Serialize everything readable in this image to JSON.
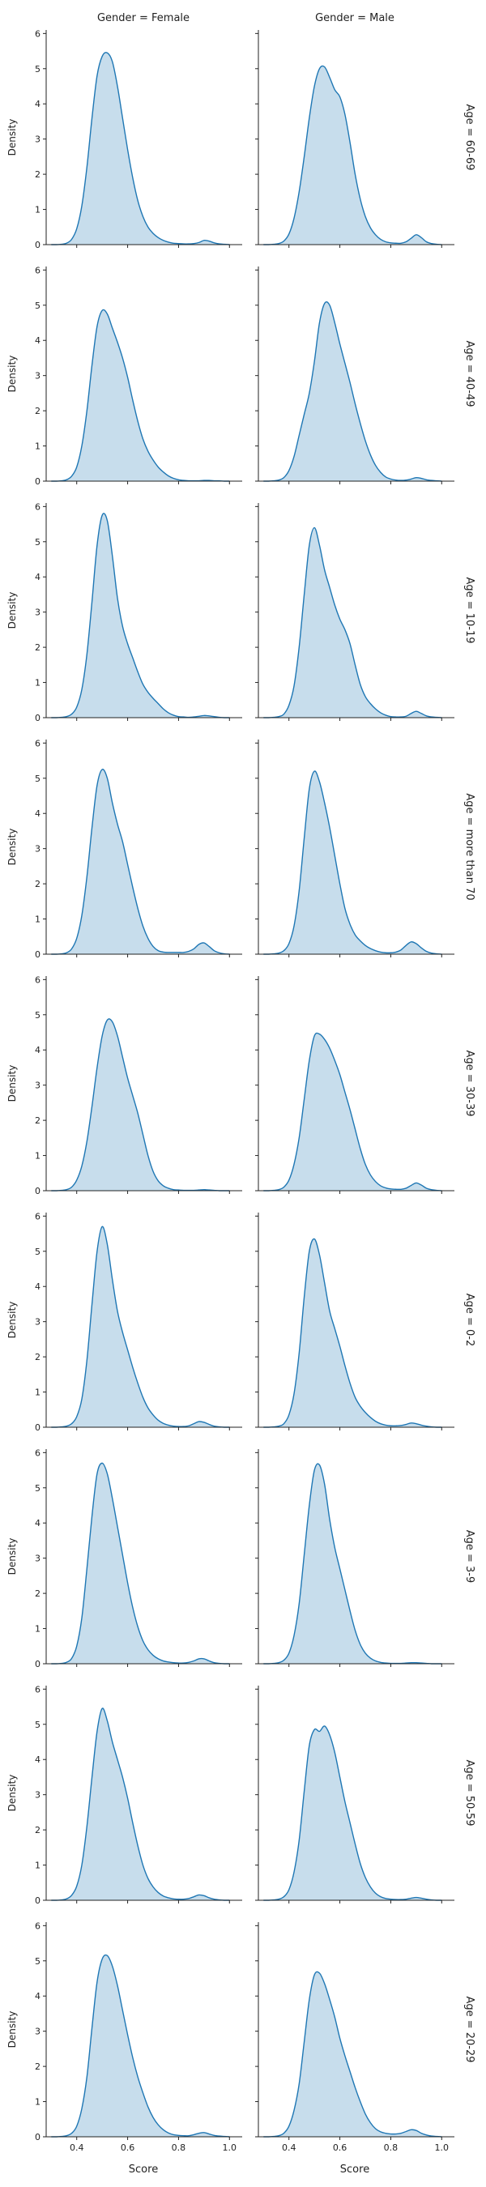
{
  "figure": {
    "col_titles": [
      "Gender = Female",
      "Gender = Male"
    ],
    "row_titles": [
      "Age = 60-69",
      "Age = 40-49",
      "Age = 10-19",
      "Age = more than 70",
      "Age = 30-39",
      "Age = 0-2",
      "Age = 3-9",
      "Age = 50-59",
      "Age = 20-29"
    ],
    "xlabel": "Score",
    "ylabel": "Density"
  },
  "colors": {
    "line": "#1f77b4",
    "fill": "#1f77b4",
    "fill_opacity": 0.25,
    "axis": "#222222"
  },
  "chart_data": {
    "type": "area",
    "kind": "kde facet grid",
    "xlim": [
      0.28,
      1.05
    ],
    "ylim": [
      0,
      6.1
    ],
    "xticks": [
      0.4,
      0.6,
      0.8,
      1.0
    ],
    "xtick_labels": [
      "0.4",
      "0.6",
      "0.8",
      "1.0"
    ],
    "yticks": [
      0,
      1,
      2,
      3,
      4,
      5,
      6
    ],
    "ytick_labels": [
      "0",
      "1",
      "2",
      "3",
      "4",
      "5",
      "6"
    ],
    "x": [
      0.3,
      0.32,
      0.34,
      0.36,
      0.38,
      0.4,
      0.42,
      0.44,
      0.46,
      0.48,
      0.5,
      0.52,
      0.54,
      0.56,
      0.58,
      0.6,
      0.62,
      0.64,
      0.66,
      0.68,
      0.7,
      0.72,
      0.74,
      0.76,
      0.78,
      0.8,
      0.82,
      0.84,
      0.86,
      0.88,
      0.9,
      0.92,
      0.94,
      0.96,
      0.98,
      1.0
    ],
    "panels": [
      {
        "row": "Age = 60-69",
        "col": "Gender = Female",
        "y": [
          0,
          0,
          0.01,
          0.04,
          0.15,
          0.45,
          1.1,
          2.2,
          3.6,
          4.8,
          5.35,
          5.45,
          5.2,
          4.5,
          3.6,
          2.7,
          1.9,
          1.25,
          0.8,
          0.5,
          0.32,
          0.2,
          0.12,
          0.07,
          0.04,
          0.03,
          0.02,
          0.02,
          0.03,
          0.06,
          0.12,
          0.1,
          0.05,
          0.02,
          0.01,
          0
        ]
      },
      {
        "row": "Age = 60-69",
        "col": "Gender = Male",
        "y": [
          0,
          0,
          0.01,
          0.03,
          0.1,
          0.3,
          0.75,
          1.5,
          2.5,
          3.6,
          4.5,
          5.0,
          5.05,
          4.75,
          4.4,
          4.2,
          3.7,
          2.9,
          2.0,
          1.3,
          0.8,
          0.48,
          0.28,
          0.15,
          0.08,
          0.05,
          0.04,
          0.04,
          0.08,
          0.18,
          0.28,
          0.2,
          0.08,
          0.03,
          0.01,
          0
        ]
      },
      {
        "row": "Age = 40-49",
        "col": "Gender = Female",
        "y": [
          0,
          0,
          0.01,
          0.04,
          0.14,
          0.4,
          1.0,
          2.0,
          3.3,
          4.4,
          4.85,
          4.75,
          4.35,
          3.95,
          3.5,
          2.95,
          2.3,
          1.7,
          1.2,
          0.85,
          0.6,
          0.4,
          0.26,
          0.15,
          0.08,
          0.04,
          0.02,
          0.01,
          0.01,
          0.01,
          0.02,
          0.02,
          0.01,
          0.01,
          0,
          0
        ]
      },
      {
        "row": "Age = 40-49",
        "col": "Gender = Male",
        "y": [
          0,
          0,
          0.01,
          0.03,
          0.1,
          0.3,
          0.7,
          1.3,
          1.9,
          2.5,
          3.4,
          4.5,
          5.05,
          5.0,
          4.5,
          3.9,
          3.35,
          2.8,
          2.2,
          1.65,
          1.15,
          0.75,
          0.45,
          0.25,
          0.12,
          0.06,
          0.03,
          0.02,
          0.03,
          0.06,
          0.1,
          0.08,
          0.04,
          0.02,
          0.01,
          0
        ]
      },
      {
        "row": "Age = 10-19",
        "col": "Gender = Female",
        "y": [
          0,
          0,
          0.01,
          0.03,
          0.1,
          0.3,
          0.8,
          1.8,
          3.3,
          4.9,
          5.75,
          5.6,
          4.6,
          3.4,
          2.6,
          2.1,
          1.7,
          1.3,
          0.95,
          0.72,
          0.55,
          0.4,
          0.25,
          0.14,
          0.07,
          0.03,
          0.02,
          0.01,
          0.02,
          0.04,
          0.06,
          0.05,
          0.03,
          0.01,
          0,
          0
        ]
      },
      {
        "row": "Age = 10-19",
        "col": "Gender = Male",
        "y": [
          0,
          0,
          0.01,
          0.03,
          0.1,
          0.35,
          0.9,
          2.0,
          3.5,
          4.9,
          5.4,
          4.9,
          4.2,
          3.7,
          3.2,
          2.8,
          2.5,
          2.1,
          1.5,
          0.95,
          0.6,
          0.4,
          0.25,
          0.14,
          0.07,
          0.03,
          0.02,
          0.02,
          0.04,
          0.12,
          0.18,
          0.12,
          0.05,
          0.02,
          0.01,
          0
        ]
      },
      {
        "row": "Age = more than 70",
        "col": "Gender = Female",
        "y": [
          0,
          0,
          0.01,
          0.04,
          0.15,
          0.45,
          1.1,
          2.2,
          3.6,
          4.8,
          5.25,
          5.0,
          4.3,
          3.7,
          3.2,
          2.55,
          1.9,
          1.3,
          0.8,
          0.45,
          0.22,
          0.1,
          0.06,
          0.05,
          0.05,
          0.05,
          0.05,
          0.08,
          0.15,
          0.28,
          0.32,
          0.22,
          0.1,
          0.04,
          0.01,
          0
        ]
      },
      {
        "row": "Age = more than 70",
        "col": "Gender = Male",
        "y": [
          0,
          0,
          0.01,
          0.03,
          0.1,
          0.3,
          0.8,
          1.8,
          3.3,
          4.7,
          5.2,
          4.9,
          4.3,
          3.6,
          2.8,
          2.0,
          1.3,
          0.85,
          0.55,
          0.38,
          0.25,
          0.16,
          0.1,
          0.06,
          0.04,
          0.04,
          0.06,
          0.12,
          0.25,
          0.35,
          0.3,
          0.18,
          0.08,
          0.03,
          0.01,
          0
        ]
      },
      {
        "row": "Age = 30-39",
        "col": "Gender = Female",
        "y": [
          0,
          0,
          0.01,
          0.03,
          0.1,
          0.3,
          0.7,
          1.4,
          2.4,
          3.5,
          4.4,
          4.85,
          4.8,
          4.4,
          3.8,
          3.2,
          2.7,
          2.2,
          1.6,
          1.0,
          0.55,
          0.28,
          0.14,
          0.07,
          0.03,
          0.02,
          0.01,
          0.01,
          0.01,
          0.02,
          0.03,
          0.02,
          0.01,
          0,
          0,
          0
        ]
      },
      {
        "row": "Age = 30-39",
        "col": "Gender = Male",
        "y": [
          0,
          0,
          0.01,
          0.03,
          0.1,
          0.3,
          0.75,
          1.5,
          2.6,
          3.7,
          4.4,
          4.45,
          4.3,
          4.05,
          3.7,
          3.3,
          2.8,
          2.3,
          1.75,
          1.2,
          0.75,
          0.45,
          0.26,
          0.14,
          0.08,
          0.05,
          0.04,
          0.04,
          0.07,
          0.15,
          0.22,
          0.16,
          0.07,
          0.03,
          0.01,
          0
        ]
      },
      {
        "row": "Age = 0-2",
        "col": "Gender = Female",
        "y": [
          0,
          0,
          0.01,
          0.03,
          0.1,
          0.3,
          0.8,
          1.9,
          3.5,
          5.0,
          5.7,
          5.2,
          4.2,
          3.3,
          2.7,
          2.2,
          1.7,
          1.25,
          0.85,
          0.55,
          0.35,
          0.2,
          0.11,
          0.06,
          0.03,
          0.02,
          0.02,
          0.04,
          0.1,
          0.16,
          0.14,
          0.08,
          0.03,
          0.01,
          0,
          0
        ]
      },
      {
        "row": "Age = 0-2",
        "col": "Gender = Male",
        "y": [
          0,
          0,
          0.01,
          0.03,
          0.1,
          0.35,
          0.95,
          2.1,
          3.7,
          5.0,
          5.35,
          4.9,
          4.1,
          3.3,
          2.8,
          2.3,
          1.75,
          1.25,
          0.85,
          0.6,
          0.42,
          0.28,
          0.17,
          0.1,
          0.06,
          0.04,
          0.04,
          0.05,
          0.08,
          0.12,
          0.1,
          0.06,
          0.03,
          0.01,
          0,
          0
        ]
      },
      {
        "row": "Age = 3-9",
        "col": "Gender = Female",
        "y": [
          0,
          0,
          0.01,
          0.04,
          0.15,
          0.5,
          1.3,
          2.7,
          4.2,
          5.4,
          5.7,
          5.4,
          4.7,
          3.9,
          3.1,
          2.3,
          1.6,
          1.05,
          0.65,
          0.4,
          0.24,
          0.14,
          0.08,
          0.05,
          0.03,
          0.02,
          0.02,
          0.04,
          0.08,
          0.14,
          0.14,
          0.08,
          0.03,
          0.01,
          0,
          0
        ]
      },
      {
        "row": "Age = 3-9",
        "col": "Gender = Male",
        "y": [
          0,
          0,
          0.01,
          0.03,
          0.1,
          0.3,
          0.8,
          1.7,
          3.1,
          4.5,
          5.5,
          5.65,
          5.1,
          4.1,
          3.3,
          2.7,
          2.1,
          1.5,
          0.95,
          0.55,
          0.3,
          0.16,
          0.08,
          0.04,
          0.02,
          0.01,
          0.01,
          0.01,
          0.02,
          0.03,
          0.03,
          0.02,
          0.01,
          0,
          0,
          0
        ]
      },
      {
        "row": "Age = 50-59",
        "col": "Gender = Female",
        "y": [
          0,
          0,
          0.01,
          0.04,
          0.14,
          0.4,
          1.0,
          2.1,
          3.5,
          4.8,
          5.45,
          5.1,
          4.5,
          4.0,
          3.5,
          2.9,
          2.2,
          1.55,
          1.0,
          0.62,
          0.38,
          0.22,
          0.12,
          0.07,
          0.04,
          0.03,
          0.03,
          0.05,
          0.1,
          0.15,
          0.13,
          0.07,
          0.03,
          0.01,
          0,
          0
        ]
      },
      {
        "row": "Age = 50-59",
        "col": "Gender = Male",
        "y": [
          0,
          0,
          0.01,
          0.03,
          0.1,
          0.3,
          0.8,
          1.7,
          3.1,
          4.4,
          4.85,
          4.8,
          4.95,
          4.7,
          4.2,
          3.5,
          2.8,
          2.2,
          1.6,
          1.05,
          0.65,
          0.38,
          0.2,
          0.1,
          0.05,
          0.03,
          0.02,
          0.02,
          0.03,
          0.06,
          0.08,
          0.06,
          0.03,
          0.01,
          0,
          0
        ]
      },
      {
        "row": "Age = 20-29",
        "col": "Gender = Female",
        "y": [
          0,
          0,
          0.01,
          0.03,
          0.1,
          0.3,
          0.8,
          1.7,
          3.1,
          4.4,
          5.05,
          5.15,
          4.85,
          4.3,
          3.6,
          2.9,
          2.25,
          1.7,
          1.25,
          0.85,
          0.55,
          0.34,
          0.2,
          0.11,
          0.06,
          0.04,
          0.03,
          0.03,
          0.06,
          0.1,
          0.12,
          0.08,
          0.04,
          0.02,
          0.01,
          0
        ]
      },
      {
        "row": "Age = 20-29",
        "col": "Gender = Male",
        "y": [
          0,
          0,
          0.01,
          0.03,
          0.1,
          0.3,
          0.75,
          1.5,
          2.7,
          3.9,
          4.6,
          4.65,
          4.35,
          3.9,
          3.4,
          2.8,
          2.3,
          1.85,
          1.4,
          1.0,
          0.65,
          0.4,
          0.23,
          0.14,
          0.1,
          0.08,
          0.08,
          0.1,
          0.15,
          0.2,
          0.18,
          0.1,
          0.05,
          0.02,
          0.01,
          0
        ]
      }
    ]
  }
}
